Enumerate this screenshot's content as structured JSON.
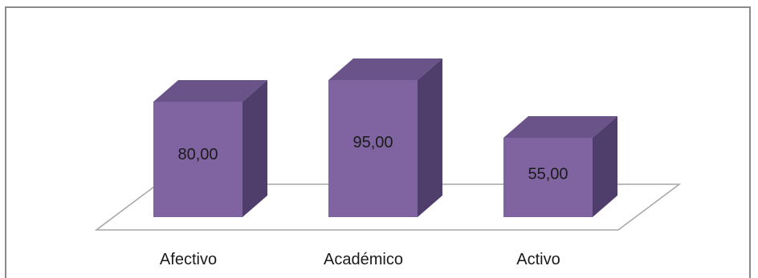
{
  "chart_data": {
    "type": "bar",
    "style": "3d-column",
    "categories": [
      "Afectivo",
      "Académico",
      "Activo"
    ],
    "values": [
      80,
      95,
      55
    ],
    "value_labels": [
      "80,00",
      "95,00",
      "55,00"
    ],
    "title": "",
    "xlabel": "",
    "ylabel": "",
    "ylim": [
      0,
      100
    ],
    "grid": false,
    "legend": "none",
    "colors": {
      "front": "#8064a2",
      "top": "#6a5389",
      "side": "#4f3d6b",
      "floor_line": "#a6a6a6",
      "frame": "#8a8a8a"
    }
  }
}
